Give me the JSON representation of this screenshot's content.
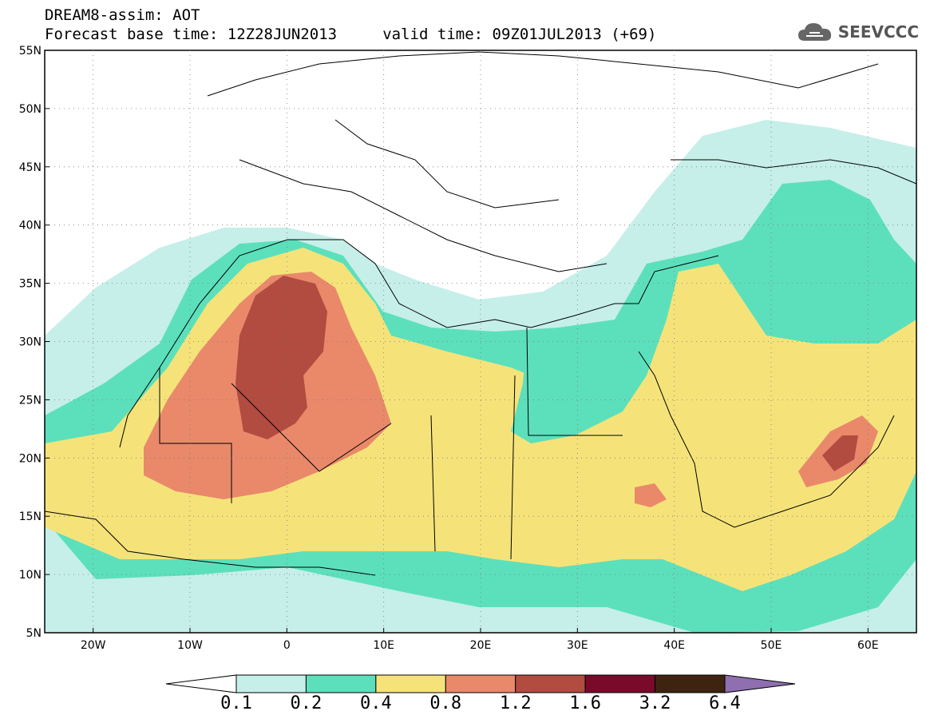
{
  "header": {
    "line1": "DREAM8-assim: AOT",
    "line2": "Forecast base time: 12Z28JUN2013     valid time: 09Z01JUL2013 (+69)"
  },
  "logo": {
    "text": "SEEVCCC",
    "icon": "cloud-icon"
  },
  "map": {
    "lat_labels": [
      "55N",
      "50N",
      "45N",
      "40N",
      "35N",
      "30N",
      "25N",
      "20N",
      "15N",
      "10N",
      "5N"
    ],
    "lon_labels": [
      "20W",
      "10W",
      "0",
      "10E",
      "20E",
      "30E",
      "40E",
      "50E",
      "60E"
    ],
    "lon_range": [
      -25,
      65
    ],
    "lat_range": [
      5,
      55
    ]
  },
  "colorbar": {
    "labels": [
      "0.1",
      "0.2",
      "0.4",
      "0.8",
      "1.2",
      "1.6",
      "3.2",
      "6.4"
    ],
    "colors": [
      "#ffffff",
      "#c6efe9",
      "#5ce0bb",
      "#f5e37a",
      "#e9896a",
      "#b24b40",
      "#7a0a2a",
      "#3e2410",
      "#8f6fb0"
    ]
  }
}
